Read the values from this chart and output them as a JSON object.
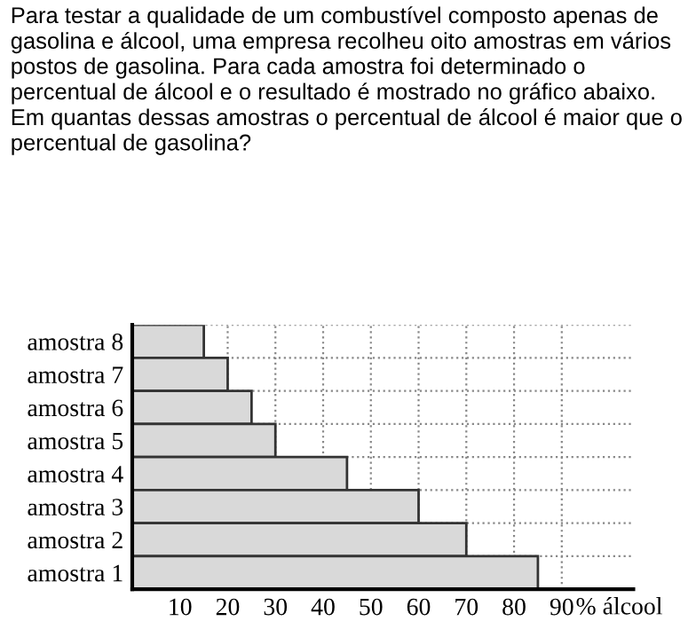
{
  "chart_data": {
    "type": "bar",
    "orientation": "horizontal",
    "title": "Para testar a qualidade de um combustível composto apenas de gasolina e álcool, uma empresa recolheu oito amostras em vários postos de gasolina. Para cada amostra foi determinado o percentual de álcool e o resultado é mostrado no gráfico abaixo. Em quantas dessas amostras o percentual de álcool é maior que o percentual de gasolina?",
    "xlabel": "% álcool",
    "categories": [
      "amostra 8",
      "amostra 7",
      "amostra 6",
      "amostra 5",
      "amostra 4",
      "amostra 3",
      "amostra 2",
      "amostra 1"
    ],
    "values": [
      15,
      20,
      25,
      30,
      45,
      60,
      70,
      85
    ],
    "color": "#d9d9d9",
    "xlim": [
      0,
      105
    ],
    "xticks": [
      10,
      20,
      30,
      40,
      50,
      60,
      70,
      80,
      90
    ],
    "grid": true
  }
}
